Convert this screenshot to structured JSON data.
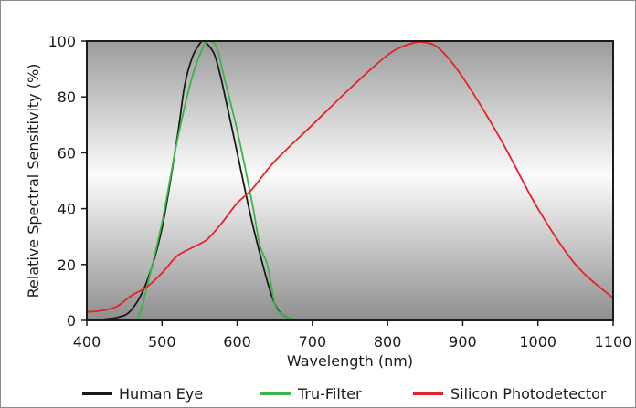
{
  "chart_data": {
    "type": "line",
    "title": "",
    "xlabel": "Wavelength (nm)",
    "ylabel": "Relative Spectral Sensitivity (%)",
    "xlim": [
      400,
      1100
    ],
    "ylim": [
      0,
      100
    ],
    "xticks": [
      "400",
      "500",
      "600",
      "700",
      "800",
      "900",
      "1000",
      "1100"
    ],
    "yticks": [
      "0",
      "20",
      "40",
      "60",
      "80",
      "100"
    ],
    "grid": false,
    "legend_position": "bottom",
    "plot_background": "grey-gradient",
    "series": [
      {
        "name": "Human Eye",
        "color": "#1a1a1a",
        "x": [
          400,
          440,
          460,
          480,
          500,
          520,
          530,
          540,
          550,
          555,
          560,
          570,
          580,
          600,
          620,
          640,
          650,
          660,
          680,
          700,
          800
        ],
        "y": [
          0,
          1,
          4,
          14,
          33,
          65,
          84,
          94,
          99,
          100,
          99,
          95,
          85,
          60,
          35,
          14,
          6,
          2,
          0,
          0,
          0
        ]
      },
      {
        "name": "Tru-Filter",
        "color": "#3bb54a",
        "x": [
          400,
          460,
          470,
          480,
          500,
          520,
          540,
          555,
          560,
          565,
          570,
          575,
          580,
          600,
          620,
          630,
          640,
          650,
          660,
          680,
          700,
          800
        ],
        "y": [
          0,
          0,
          2,
          12,
          35,
          64,
          87,
          98,
          100,
          100,
          99,
          96,
          90,
          68,
          42,
          27,
          20,
          6,
          2,
          0,
          0,
          0
        ]
      },
      {
        "name": "Silicon Photodetector",
        "color": "#e8202a",
        "x": [
          400,
          420,
          440,
          460,
          480,
          500,
          520,
          540,
          560,
          580,
          600,
          620,
          650,
          700,
          750,
          800,
          830,
          850,
          870,
          900,
          950,
          1000,
          1050,
          1100
        ],
        "y": [
          3,
          3.5,
          5,
          9,
          12,
          17,
          23,
          26,
          29,
          35,
          42,
          47,
          57,
          70,
          83,
          95,
          99,
          99.5,
          97,
          87,
          65,
          40,
          20,
          8
        ]
      }
    ]
  }
}
